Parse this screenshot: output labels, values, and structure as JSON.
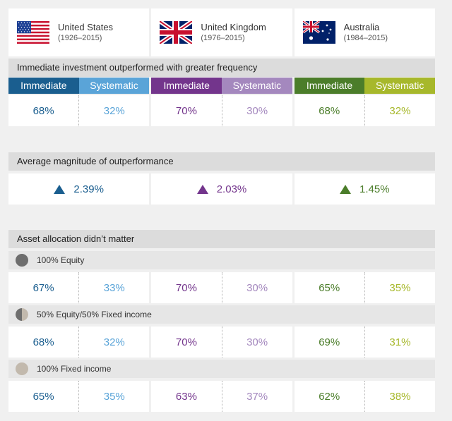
{
  "chart_data": {
    "type": "table",
    "countries": [
      {
        "name": "United States",
        "years": "(1926–2015)",
        "flag": "us-flag"
      },
      {
        "name": "United Kingdom",
        "years": "(1976–2015)",
        "flag": "uk-flag"
      },
      {
        "name": "Australia",
        "years": "(1984–2015)",
        "flag": "au-flag"
      }
    ],
    "columns": [
      "Immediate",
      "Systematic"
    ],
    "frequency": {
      "title": "Immediate investment outperformed with greater frequency",
      "values": [
        {
          "immediate": "68%",
          "systematic": "32%"
        },
        {
          "immediate": "70%",
          "systematic": "30%"
        },
        {
          "immediate": "68%",
          "systematic": "32%"
        }
      ]
    },
    "magnitude": {
      "title": "Average magnitude of outperformance",
      "values": [
        "2.39%",
        "2.03%",
        "1.45%"
      ]
    },
    "allocation": {
      "title": "Asset allocation didn’t matter",
      "groups": [
        {
          "label": "100% Equity",
          "icon": "full-equity-circle-icon",
          "values": [
            {
              "immediate": "67%",
              "systematic": "33%"
            },
            {
              "immediate": "70%",
              "systematic": "30%"
            },
            {
              "immediate": "65%",
              "systematic": "35%"
            }
          ]
        },
        {
          "label": "50% Equity/50% Fixed income",
          "icon": "half-equity-circle-icon",
          "values": [
            {
              "immediate": "68%",
              "systematic": "32%"
            },
            {
              "immediate": "70%",
              "systematic": "30%"
            },
            {
              "immediate": "69%",
              "systematic": "31%"
            }
          ]
        },
        {
          "label": "100% Fixed income",
          "icon": "fixed-income-circle-icon",
          "values": [
            {
              "immediate": "65%",
              "systematic": "35%"
            },
            {
              "immediate": "63%",
              "systematic": "37%"
            },
            {
              "immediate": "62%",
              "systematic": "38%"
            }
          ]
        }
      ]
    },
    "colors": {
      "us_immediate": "#1a5e8f",
      "us_systematic": "#5aa4d8",
      "uk_immediate": "#73358c",
      "uk_systematic": "#a488be",
      "au_immediate": "#4b7d2a",
      "au_systematic": "#a7b82b",
      "equity": "#6e6e6e",
      "fixed_income": "#c2b9ad"
    }
  }
}
